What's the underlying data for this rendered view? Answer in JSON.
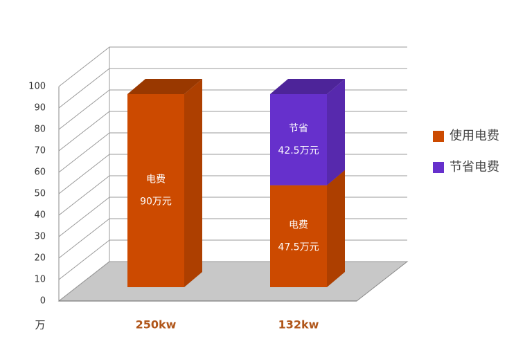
{
  "chart_data": {
    "type": "bar3d_stacked",
    "y_unit": "万",
    "categories": [
      "250kw",
      "132kw"
    ],
    "series": [
      {
        "name": "使用电费",
        "color": "#cc4a00",
        "values": [
          90,
          47.5
        ],
        "segment_names": [
          "电费",
          "电费"
        ],
        "value_labels": [
          "90万元",
          "47.5万元"
        ]
      },
      {
        "name": "节省电费",
        "color": "#6630cc",
        "values": [
          null,
          42.5
        ],
        "segment_names": [
          null,
          "节省"
        ],
        "value_labels": [
          null,
          "42.5万元"
        ]
      }
    ],
    "ylim": [
      0,
      100
    ],
    "yticks": [
      0,
      10,
      20,
      30,
      40,
      50,
      60,
      70,
      80,
      90,
      100
    ],
    "grid": true,
    "legend": "right"
  }
}
